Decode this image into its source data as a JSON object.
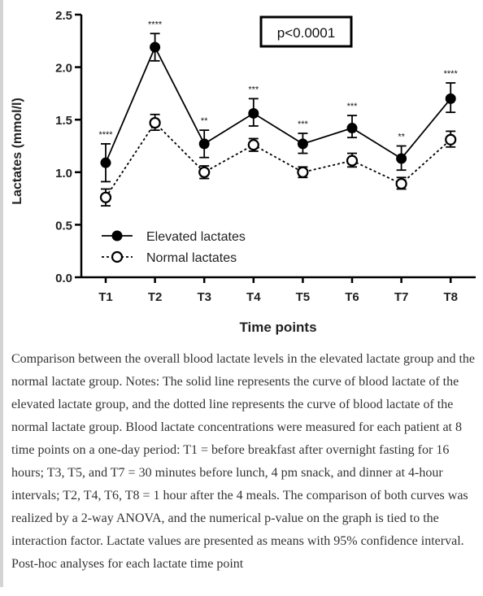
{
  "chart_data": {
    "type": "line",
    "ylabel": "Lactates (mmol/l)",
    "xlabel": "Time points",
    "categories": [
      "T1",
      "T2",
      "T3",
      "T4",
      "T5",
      "T6",
      "T7",
      "T8"
    ],
    "ylim": [
      0,
      2.5
    ],
    "yticks": [
      "0.0",
      "0.5",
      "1.0",
      "1.5",
      "2.0",
      "2.5"
    ],
    "series": [
      {
        "name": "Elevated lactates",
        "style": "solid",
        "marker": "filled-circle",
        "values": [
          1.09,
          2.19,
          1.27,
          1.56,
          1.27,
          1.42,
          1.13,
          1.7
        ],
        "ci_low": [
          0.91,
          2.06,
          1.14,
          1.44,
          1.18,
          1.33,
          1.02,
          1.57
        ],
        "ci_high": [
          1.27,
          2.32,
          1.4,
          1.7,
          1.37,
          1.54,
          1.25,
          1.85
        ]
      },
      {
        "name": "Normal lactates",
        "style": "dotted",
        "marker": "open-circle",
        "values": [
          0.76,
          1.47,
          1.0,
          1.26,
          1.0,
          1.11,
          0.89,
          1.31
        ],
        "ci_low": [
          0.68,
          1.4,
          0.94,
          1.2,
          0.95,
          1.05,
          0.84,
          1.24
        ],
        "ci_high": [
          0.84,
          1.55,
          1.06,
          1.32,
          1.05,
          1.18,
          0.95,
          1.39
        ]
      }
    ],
    "significance": [
      "****",
      "****",
      "**",
      "***",
      "***",
      "***",
      "**",
      "****"
    ],
    "annotation": "p<0.0001",
    "legend_position": "bottom-left",
    "colors": {
      "line": "#000000",
      "open_marker_fill": "#ffffff"
    }
  },
  "caption": "Comparison between the overall blood lactate levels in the elevated lactate group and the normal lactate group. Notes: The solid line represents the curve of blood lactate of the elevated lactate group, and the dotted line represents the curve of blood lactate of the normal lactate group. Blood lactate concentrations were measured for each patient at 8 time points on a one-day period: T1 = before breakfast after overnight fasting for 16 hours; T3, T5, and T7 = 30 minutes before lunch, 4 pm snack, and dinner at 4-hour intervals; T2, T4, T6, T8 = 1 hour after the 4 meals. The comparison of both curves was realized by a 2-way ANOVA, and the numerical p-value on the graph is tied to the interaction factor. Lactate values are presented as means with 95% confidence interval. Post-hoc analyses for each lactate time point"
}
